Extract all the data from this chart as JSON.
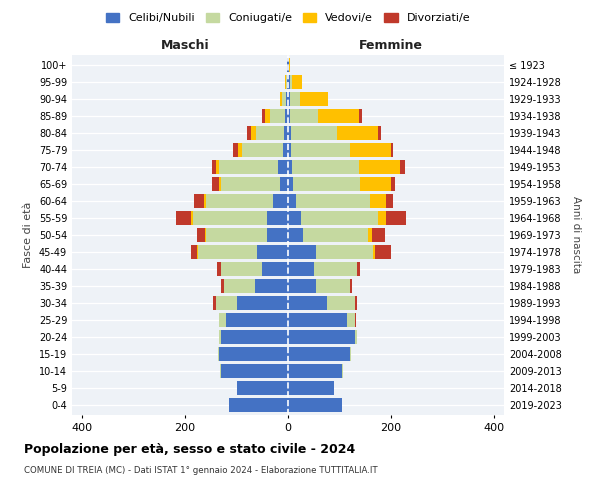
{
  "age_groups": [
    "0-4",
    "5-9",
    "10-14",
    "15-19",
    "20-24",
    "25-29",
    "30-34",
    "35-39",
    "40-44",
    "45-49",
    "50-54",
    "55-59",
    "60-64",
    "65-69",
    "70-74",
    "75-79",
    "80-84",
    "85-89",
    "90-94",
    "95-99",
    "100+"
  ],
  "birth_years": [
    "2019-2023",
    "2014-2018",
    "2009-2013",
    "2004-2008",
    "1999-2003",
    "1994-1998",
    "1989-1993",
    "1984-1988",
    "1979-1983",
    "1974-1978",
    "1969-1973",
    "1964-1968",
    "1959-1963",
    "1954-1958",
    "1949-1953",
    "1944-1948",
    "1939-1943",
    "1934-1938",
    "1929-1933",
    "1924-1928",
    "≤ 1923"
  ],
  "maschi": {
    "celibi": [
      115,
      100,
      130,
      135,
      130,
      120,
      100,
      65,
      50,
      60,
      40,
      40,
      30,
      15,
      20,
      10,
      8,
      5,
      3,
      2,
      1
    ],
    "coniugati": [
      0,
      0,
      2,
      2,
      5,
      15,
      40,
      60,
      80,
      115,
      120,
      145,
      130,
      115,
      115,
      80,
      55,
      30,
      8,
      2,
      0
    ],
    "vedovi": [
      0,
      0,
      0,
      0,
      0,
      0,
      0,
      0,
      0,
      2,
      2,
      3,
      3,
      5,
      5,
      8,
      8,
      10,
      5,
      2,
      0
    ],
    "divorziati": [
      0,
      0,
      0,
      0,
      0,
      0,
      5,
      5,
      8,
      12,
      15,
      30,
      20,
      12,
      8,
      8,
      8,
      5,
      0,
      0,
      0
    ]
  },
  "femmine": {
    "nubili": [
      105,
      90,
      105,
      120,
      130,
      115,
      75,
      55,
      50,
      55,
      30,
      25,
      15,
      10,
      8,
      5,
      5,
      4,
      3,
      3,
      1
    ],
    "coniugate": [
      0,
      0,
      2,
      3,
      5,
      15,
      55,
      65,
      85,
      110,
      125,
      150,
      145,
      130,
      130,
      115,
      90,
      55,
      20,
      5,
      0
    ],
    "vedove": [
      0,
      0,
      0,
      0,
      0,
      0,
      0,
      0,
      0,
      5,
      8,
      15,
      30,
      60,
      80,
      80,
      80,
      80,
      55,
      20,
      2
    ],
    "divorziate": [
      0,
      0,
      0,
      0,
      0,
      2,
      5,
      5,
      5,
      30,
      25,
      40,
      15,
      8,
      10,
      5,
      5,
      5,
      0,
      0,
      0
    ]
  },
  "colors": {
    "celibi_nubili": "#4472c4",
    "coniugati": "#c5d9a0",
    "vedovi": "#ffc000",
    "divorziati": "#c0392b"
  },
  "xlim": 420,
  "title": "Popolazione per età, sesso e stato civile - 2024",
  "subtitle": "COMUNE DI TREIA (MC) - Dati ISTAT 1° gennaio 2024 - Elaborazione TUTTITALIA.IT",
  "ylabel_left": "Fasce di età",
  "ylabel_right": "Anni di nascita",
  "xlabel_maschi": "Maschi",
  "xlabel_femmine": "Femmine",
  "bg_color": "#eef2f7",
  "legend_labels": [
    "Celibi/Nubili",
    "Coniugati/e",
    "Vedovi/e",
    "Divorziati/e"
  ]
}
